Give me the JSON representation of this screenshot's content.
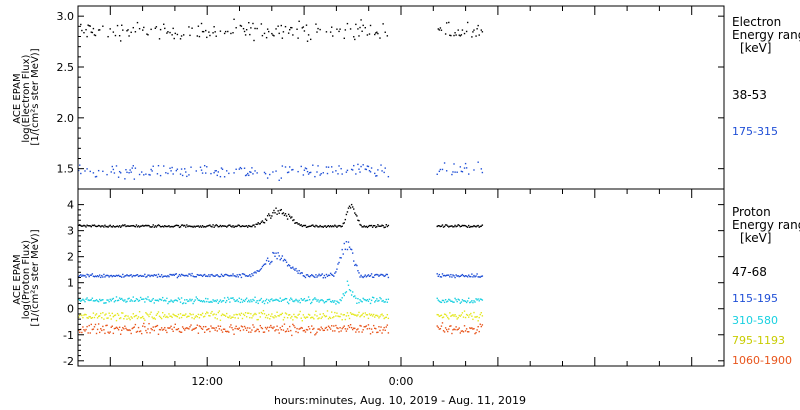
{
  "chart_data": [
    {
      "type": "scatter",
      "panel": "electron",
      "ylabel_lines": [
        "ACE EPAM",
        "log(Electron Flux)",
        "[1/(cm²s ster MeV)]"
      ],
      "ylim": [
        1.3,
        3.1
      ],
      "yticks": [
        "1.5",
        "2.0",
        "2.5",
        "3.0"
      ],
      "legend_title_lines": [
        "Electron",
        "Energy ranges",
        "[keV]"
      ],
      "data_gap": [
        19.3,
        22.1
      ],
      "series": [
        {
          "name": "38-53",
          "color": "#000000",
          "mean": 2.86,
          "jitter": 0.07,
          "segments": [
            [
              0.0,
              19.2
            ],
            [
              22.2,
              25.0
            ]
          ]
        },
        {
          "name": "175-315",
          "color": "#1f4fd6",
          "mean": 1.48,
          "jitter": 0.06,
          "segments": [
            [
              0.0,
              19.2
            ],
            [
              22.2,
              25.0
            ]
          ]
        }
      ]
    },
    {
      "type": "scatter",
      "panel": "proton",
      "ylabel_lines": [
        "ACE EPAM",
        "log(Proton Flux)",
        "[1/(cm²s ster MeV)]"
      ],
      "ylim": [
        -2.2,
        4.6
      ],
      "yticks": [
        "-2",
        "-1",
        "0",
        "1",
        "2",
        "3",
        "4"
      ],
      "legend_title_lines": [
        "Proton",
        "Energy ranges",
        "[keV]"
      ],
      "data_gap": [
        19.3,
        22.1
      ],
      "series": [
        {
          "name": "47-68",
          "color": "#000000",
          "mean": 3.2,
          "jitter": 0.04,
          "segments": [
            [
              0.0,
              19.2
            ],
            [
              22.2,
              25.0
            ]
          ],
          "bumps": [
            {
              "center": 12.4,
              "width": 0.9,
              "height": 0.6
            },
            {
              "center": 16.9,
              "width": 0.35,
              "height": 1.0
            }
          ]
        },
        {
          "name": "115-195",
          "color": "#1f4fd6",
          "mean": 1.3,
          "jitter": 0.06,
          "segments": [
            [
              0.0,
              19.2
            ],
            [
              22.2,
              25.0
            ]
          ],
          "bumps": [
            {
              "center": 12.3,
              "width": 1.0,
              "height": 0.8
            },
            {
              "center": 16.6,
              "width": 0.5,
              "height": 1.3
            }
          ]
        },
        {
          "name": "310-580",
          "color": "#19d0e0",
          "mean": 0.35,
          "jitter": 0.09,
          "segments": [
            [
              0.0,
              19.2
            ],
            [
              22.2,
              25.0
            ]
          ],
          "bumps": [
            {
              "center": 16.7,
              "width": 0.3,
              "height": 0.6
            }
          ]
        },
        {
          "name": "795-1193",
          "color": "#e4e81e",
          "mean": -0.25,
          "jitter": 0.13,
          "segments": [
            [
              0.0,
              19.2
            ],
            [
              22.2,
              25.0
            ]
          ]
        },
        {
          "name": "1060-1900",
          "color": "#e8551c",
          "mean": -0.75,
          "jitter": 0.16,
          "segments": [
            [
              0.0,
              19.2
            ],
            [
              22.2,
              25.0
            ]
          ]
        }
      ]
    }
  ],
  "xaxis": {
    "xlabel": "hours:minutes, Aug. 10, 2019 - Aug. 11, 2019",
    "hours_range": [
      4.0,
      44.0
    ],
    "major_ticks": [
      {
        "hour": 12,
        "label": "12:00"
      },
      {
        "hour": 24,
        "label": "0:00"
      }
    ]
  }
}
